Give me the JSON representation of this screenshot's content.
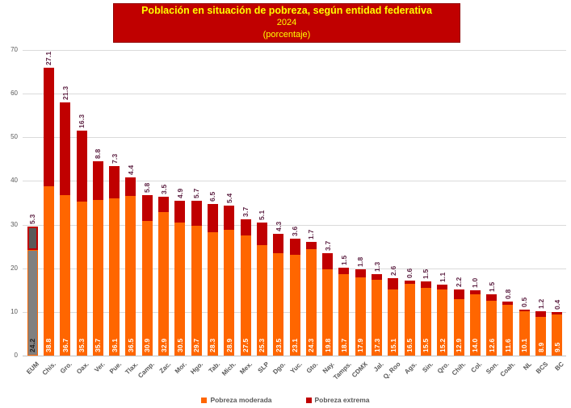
{
  "title": {
    "line1": "Población en situación de pobreza, según entidad federativa",
    "line2": "2024",
    "line3": "(porcentaje)",
    "background": "#C00000",
    "text_color": "#FFFF00"
  },
  "legend": [
    {
      "label": "Pobreza moderada",
      "color": "#FF6600"
    },
    {
      "label": "Pobreza extrema",
      "color": "#C00000"
    }
  ],
  "colors": {
    "moderate_bar": "#FF6600",
    "extreme_bar": "#C00000",
    "highlight_moderate_fill": "#808080",
    "highlight_extreme_fill": "#595959",
    "moderate_value_label": "#FFFFFF",
    "extreme_value_label": "#5E2344",
    "highlight_moderate_value_label": "#1F1F1F",
    "axis_text": "#595959",
    "gridline": "#DADADA",
    "axis_line": "#BFBFBF"
  },
  "chart_data": {
    "type": "bar",
    "stacked": true,
    "title": "Población en situación de pobreza, según entidad federativa 2024 (porcentaje)",
    "xlabel": "",
    "ylabel": "",
    "ylim": [
      0,
      70
    ],
    "yticks": [
      0,
      10,
      20,
      30,
      40,
      50,
      60,
      70
    ],
    "grid": true,
    "legend_position": "bottom",
    "categories": [
      "EUM",
      "Chis.",
      "Gro.",
      "Oax.",
      "Ver.",
      "Pue.",
      "Tlax.",
      "Camp.",
      "Zac.",
      "Mor.",
      "Hgo.",
      "Tab.",
      "Mich.",
      "Mex.",
      "SLP",
      "Dgo.",
      "Yuc.",
      "Gto.",
      "Nay.",
      "Tamps.",
      "CDMX",
      "Jal.",
      "Q. Roo",
      "Ags.",
      "Sin.",
      "Qro.",
      "Chih.",
      "Col.",
      "Son.",
      "Coah.",
      "NL",
      "BCS",
      "BC"
    ],
    "series": [
      {
        "name": "Pobreza moderada",
        "color": "#FF6600",
        "values": [
          24.2,
          38.8,
          36.7,
          35.3,
          35.7,
          36.1,
          36.5,
          30.9,
          32.9,
          30.5,
          29.7,
          28.3,
          28.9,
          27.5,
          25.3,
          23.5,
          23.1,
          24.3,
          19.8,
          18.7,
          17.9,
          17.3,
          15.1,
          16.5,
          15.5,
          15.2,
          12.9,
          14.0,
          12.6,
          11.6,
          10.1,
          8.9,
          9.5
        ]
      },
      {
        "name": "Pobreza extrema",
        "color": "#C00000",
        "values": [
          5.3,
          27.1,
          21.3,
          16.3,
          8.8,
          7.3,
          4.4,
          5.8,
          3.5,
          4.9,
          5.7,
          6.5,
          5.4,
          3.7,
          5.1,
          4.3,
          3.6,
          1.7,
          3.7,
          1.5,
          1.8,
          1.3,
          2.6,
          0.6,
          1.5,
          1.1,
          2.2,
          1.0,
          1.5,
          0.8,
          0.5,
          1.2,
          0.4
        ]
      }
    ],
    "highlight": {
      "category": "EUM",
      "moderate_fill": "#808080",
      "moderate_border": "#FF6600",
      "extreme_fill": "#595959",
      "extreme_border": "#C00000"
    }
  }
}
